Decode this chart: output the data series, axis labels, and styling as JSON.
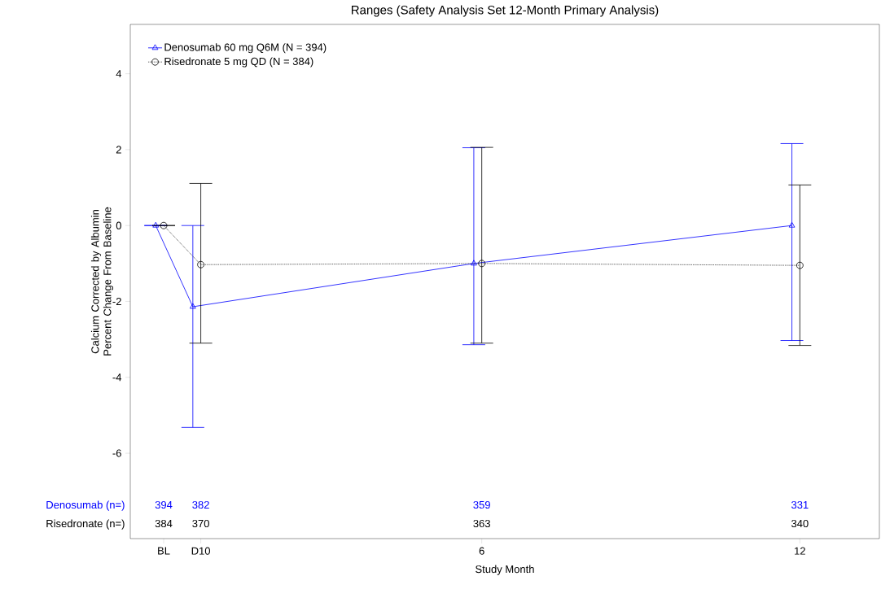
{
  "chart_data": {
    "type": "line",
    "title": "Ranges (Safety Analysis Set 12-Month Primary Analysis)",
    "xlabel": "Study Month",
    "ylabel": "Calcium Corrected by Albumin Percent Change From Baseline",
    "xlim": [
      -0.63,
      13.5
    ],
    "ylim": [
      -8.25,
      5.3
    ],
    "xticks": [
      {
        "value": 0,
        "label": "BL"
      },
      {
        "value": 0.7,
        "label": "D10"
      },
      6,
      12
    ],
    "yticks": [
      -6,
      -4,
      -2,
      0,
      2,
      4
    ],
    "legend": "top left",
    "grid": false,
    "series": [
      {
        "name": "Denosumab 60 mg Q6M (N = 394)",
        "color": "#0000ff",
        "marker": "triangle",
        "line_style": "solid",
        "x": [
          -0.15,
          0.55,
          5.85,
          11.85
        ],
        "values": [
          0,
          -2.14,
          -1.0,
          0
        ],
        "errors": [
          [
            0,
            0
          ],
          [
            -5.32,
            0
          ],
          [
            -3.14,
            2.05
          ],
          [
            -3.03,
            2.16
          ]
        ]
      },
      {
        "name": "Risedronate 5 mg QD (N = 384)",
        "color": "#000000",
        "marker": "circle",
        "line_style": "dotted",
        "x": [
          0,
          0.7,
          6,
          12
        ],
        "values": [
          0,
          -1.03,
          -1.0,
          -1.05
        ],
        "errors": [
          [
            0,
            0
          ],
          [
            -3.1,
            1.11
          ],
          [
            -3.1,
            2.06
          ],
          [
            -3.16,
            1.07
          ]
        ]
      }
    ],
    "annotations": [
      "Denosumab (n=)",
      "394",
      "382",
      "359",
      "331",
      "Risedronate (n=)",
      "384",
      "370",
      "363",
      "340"
    ]
  }
}
